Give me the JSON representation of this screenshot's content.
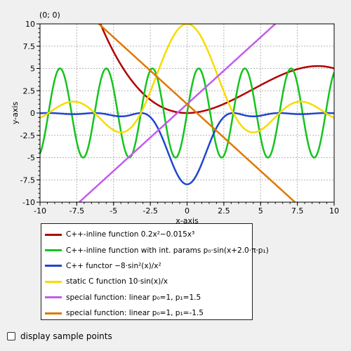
{
  "coordinate_readout": "(0; 0)",
  "colors": {
    "background": "#f0f0f0",
    "plot_bg": "#ffffff",
    "grid": "#b4b4b4",
    "axis": "#000000"
  },
  "chart_data": {
    "type": "line",
    "xlabel": "x-axis",
    "ylabel": "y-axis",
    "xlim": [
      -10,
      10
    ],
    "ylim": [
      -10,
      10
    ],
    "grid": true,
    "x_ticks": [
      {
        "value": -10,
        "label": "-10"
      },
      {
        "value": -7.5,
        "label": "-7.5"
      },
      {
        "value": -5,
        "label": "-5"
      },
      {
        "value": -2.5,
        "label": "-2.5"
      },
      {
        "value": 0,
        "label": "0"
      },
      {
        "value": 2.5,
        "label": "2.5"
      },
      {
        "value": 5,
        "label": "5"
      },
      {
        "value": 7.5,
        "label": "7.5"
      },
      {
        "value": 10,
        "label": "10"
      }
    ],
    "y_ticks": [
      {
        "value": -10,
        "label": "-10"
      },
      {
        "value": -7.5,
        "label": "-7.5"
      },
      {
        "value": -5,
        "label": "-5"
      },
      {
        "value": -2.5,
        "label": "-2.5"
      },
      {
        "value": 0,
        "label": "0"
      },
      {
        "value": 2.5,
        "label": "2.5"
      },
      {
        "value": 5,
        "label": "5"
      },
      {
        "value": 7.5,
        "label": "7.5"
      },
      {
        "value": 10,
        "label": "10"
      }
    ],
    "legend_position": "below",
    "series": [
      {
        "name": "C++-inline function 0.2x²−0.015x³",
        "color": "#b20000",
        "function": "0.2*x*x-0.015*x*x*x"
      },
      {
        "name": "C++-inline function with int. params p₀·sin(x+2.0·π·p₁)",
        "color": "#14c41e",
        "function": "5*sin(2*x)"
      },
      {
        "name": "C++ functor −8·sin²(x)/x²",
        "color": "#1e46d2",
        "function": "-8*sin(x)^2/x^2"
      },
      {
        "name": "static C function 10·sin(x)/x",
        "color": "#f5dc00",
        "function": "10*sin(x)/x"
      },
      {
        "name": "special function: linear p₀=1, p₁=1.5",
        "color": "#c25cf0",
        "function": "1+1.5*x"
      },
      {
        "name": "special function: linear p₀=1, p₁=-1.5",
        "color": "#e07800",
        "function": "1-1.5*x"
      }
    ]
  },
  "footer": {
    "checkbox_label": "display sample points",
    "checkbox_checked": false
  }
}
